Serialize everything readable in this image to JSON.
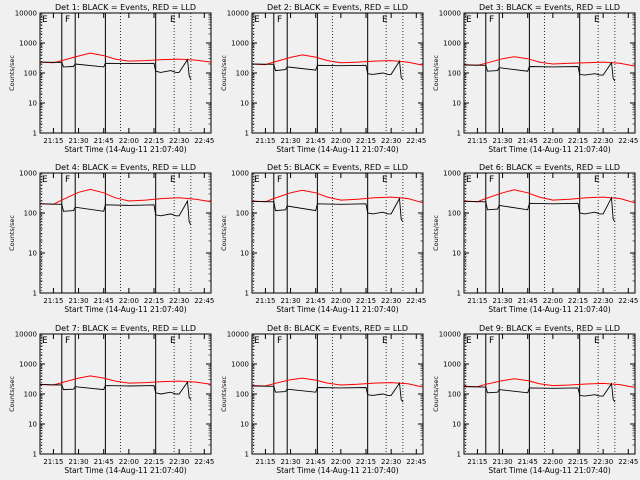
{
  "chart_data": [
    {
      "type": "line",
      "title": "Det 1: BLACK = Events, RED = LLD",
      "ylabel": "Counts/sec",
      "xlabel": "Start Time (14-Aug-11 21:07:40)",
      "y_scale": "log",
      "ylim": [
        1,
        10000
      ],
      "xlim": [
        "21:07",
        "22:49"
      ],
      "x_ticks": [
        "21:15",
        "21:30",
        "21:45",
        "22:00",
        "22:15",
        "22:30",
        "22:45"
      ],
      "y_ticks": [
        "1",
        "10",
        "100",
        "1000",
        "10000"
      ],
      "markers": [
        "E",
        "F",
        "E"
      ],
      "series": [
        {
          "color": "#ff0000",
          "x": [
            "21:07",
            "21:15",
            "21:20",
            "21:30",
            "21:37",
            "21:45",
            "21:52",
            "22:00",
            "22:10",
            "22:20",
            "22:30",
            "22:40",
            "22:49"
          ],
          "values": [
            230,
            220,
            260,
            370,
            460,
            380,
            290,
            250,
            260,
            280,
            290,
            270,
            230
          ]
        },
        {
          "color": "#000000",
          "x": [
            "21:07",
            "21:20",
            "21:21",
            "21:27",
            "21:28",
            "21:45",
            "21:46",
            "22:00",
            "22:15",
            "22:16",
            "22:19",
            "22:25",
            "22:28",
            "22:30",
            "22:35",
            "22:36",
            "22:37"
          ],
          "values": [
            230,
            225,
            160,
            165,
            200,
            160,
            210,
            205,
            210,
            115,
            105,
            120,
            105,
            105,
            280,
            80,
            60
          ]
        }
      ]
    },
    {
      "type": "line",
      "title": "Det 2: BLACK = Events, RED = LLD",
      "ylabel": "Counts/sec",
      "xlabel": "Start Time (14-Aug-11 21:07:40)",
      "y_scale": "log",
      "ylim": [
        1,
        10000
      ],
      "xlim": [
        "21:07",
        "22:49"
      ],
      "x_ticks": [
        "21:15",
        "21:30",
        "21:45",
        "22:00",
        "22:15",
        "22:30",
        "22:45"
      ],
      "y_ticks": [
        "1",
        "10",
        "100",
        "1000",
        "10000"
      ],
      "markers": [
        "E",
        "F",
        "E"
      ],
      "series": [
        {
          "color": "#ff0000",
          "x": [
            "21:07",
            "21:15",
            "21:20",
            "21:30",
            "21:37",
            "21:45",
            "21:52",
            "22:00",
            "22:10",
            "22:20",
            "22:30",
            "22:40",
            "22:49"
          ],
          "values": [
            200,
            190,
            230,
            330,
            400,
            340,
            260,
            220,
            230,
            250,
            260,
            230,
            180
          ]
        },
        {
          "color": "#000000",
          "x": [
            "21:07",
            "21:20",
            "21:21",
            "21:27",
            "21:28",
            "21:45",
            "21:46",
            "22:00",
            "22:15",
            "22:16",
            "22:19",
            "22:25",
            "22:28",
            "22:30",
            "22:35",
            "22:36",
            "22:37"
          ],
          "values": [
            200,
            195,
            120,
            130,
            160,
            125,
            180,
            175,
            180,
            95,
            90,
            100,
            90,
            90,
            250,
            70,
            60
          ]
        }
      ]
    },
    {
      "type": "line",
      "title": "Det 3: BLACK = Events, RED = LLD",
      "ylabel": "Counts/sec",
      "xlabel": "Start Time (14-Aug-11 21:07:40)",
      "y_scale": "log",
      "ylim": [
        1,
        10000
      ],
      "xlim": [
        "21:07",
        "22:49"
      ],
      "x_ticks": [
        "21:15",
        "21:30",
        "21:45",
        "22:00",
        "22:15",
        "22:30",
        "22:45"
      ],
      "y_ticks": [
        "1",
        "10",
        "100",
        "1000",
        "10000"
      ],
      "markers": [
        "E",
        "F",
        "E"
      ],
      "series": [
        {
          "color": "#ff0000",
          "x": [
            "21:07",
            "21:15",
            "21:20",
            "21:30",
            "21:37",
            "21:45",
            "21:52",
            "22:00",
            "22:10",
            "22:20",
            "22:30",
            "22:40",
            "22:49"
          ],
          "values": [
            190,
            180,
            210,
            300,
            350,
            300,
            230,
            200,
            210,
            220,
            230,
            210,
            170
          ]
        },
        {
          "color": "#000000",
          "x": [
            "21:07",
            "21:20",
            "21:21",
            "21:27",
            "21:28",
            "21:45",
            "21:46",
            "22:00",
            "22:15",
            "22:16",
            "22:19",
            "22:25",
            "22:28",
            "22:30",
            "22:35",
            "22:36",
            "22:37"
          ],
          "values": [
            185,
            180,
            115,
            120,
            150,
            115,
            165,
            160,
            165,
            90,
            85,
            95,
            85,
            85,
            220,
            65,
            55
          ]
        }
      ]
    },
    {
      "type": "line",
      "title": "Det 4: BLACK = Events, RED = LLD",
      "ylabel": "Counts/sec",
      "xlabel": "Start Time (14-Aug-11 21:07:40)",
      "y_scale": "log",
      "ylim": [
        1,
        1000
      ],
      "xlim": [
        "21:07",
        "22:49"
      ],
      "x_ticks": [
        "21:15",
        "21:30",
        "21:45",
        "22:00",
        "22:15",
        "22:30",
        "22:45"
      ],
      "y_ticks": [
        "1",
        "10",
        "100",
        "1000"
      ],
      "markers": [
        "E",
        "F",
        "E"
      ],
      "series": [
        {
          "color": "#ff0000",
          "x": [
            "21:07",
            "21:15",
            "21:20",
            "21:30",
            "21:37",
            "21:45",
            "21:52",
            "22:00",
            "22:10",
            "22:20",
            "22:30",
            "22:40",
            "22:49"
          ],
          "values": [
            170,
            165,
            210,
            330,
            390,
            320,
            240,
            200,
            210,
            230,
            240,
            220,
            190
          ]
        },
        {
          "color": "#000000",
          "x": [
            "21:07",
            "21:20",
            "21:21",
            "21:27",
            "21:28",
            "21:45",
            "21:46",
            "22:00",
            "22:15",
            "22:16",
            "22:19",
            "22:25",
            "22:28",
            "22:30",
            "22:35",
            "22:36",
            "22:37"
          ],
          "values": [
            170,
            165,
            110,
            115,
            140,
            110,
            160,
            155,
            160,
            90,
            85,
            95,
            85,
            85,
            200,
            60,
            50
          ]
        }
      ]
    },
    {
      "type": "line",
      "title": "Det 5: BLACK = Events, RED = LLD",
      "ylabel": "Counts/sec",
      "xlabel": "Start Time (14-Aug-11 21:07:40)",
      "y_scale": "log",
      "ylim": [
        1,
        1000
      ],
      "xlim": [
        "21:07",
        "22:49"
      ],
      "x_ticks": [
        "21:15",
        "21:30",
        "21:45",
        "22:00",
        "22:15",
        "22:30",
        "22:45"
      ],
      "y_ticks": [
        "1",
        "10",
        "100",
        "1000"
      ],
      "markers": [
        "E",
        "F",
        "E"
      ],
      "series": [
        {
          "color": "#ff0000",
          "x": [
            "21:07",
            "21:15",
            "21:20",
            "21:30",
            "21:37",
            "21:45",
            "21:52",
            "22:00",
            "22:10",
            "22:20",
            "22:30",
            "22:40",
            "22:49"
          ],
          "values": [
            200,
            190,
            230,
            320,
            370,
            320,
            250,
            210,
            220,
            240,
            250,
            230,
            180
          ]
        },
        {
          "color": "#000000",
          "x": [
            "21:07",
            "21:20",
            "21:21",
            "21:27",
            "21:28",
            "21:45",
            "21:46",
            "22:00",
            "22:15",
            "22:16",
            "22:19",
            "22:25",
            "22:28",
            "22:30",
            "22:35",
            "22:36",
            "22:37"
          ],
          "values": [
            195,
            190,
            115,
            120,
            150,
            115,
            170,
            165,
            170,
            100,
            95,
            105,
            95,
            95,
            230,
            70,
            60
          ]
        }
      ]
    },
    {
      "type": "line",
      "title": "Det 6: BLACK = Events, RED = LLD",
      "ylabel": "Counts/sec",
      "xlabel": "Start Time (14-Aug-11 21:07:40)",
      "y_scale": "log",
      "ylim": [
        1,
        1000
      ],
      "xlim": [
        "21:07",
        "22:49"
      ],
      "x_ticks": [
        "21:15",
        "21:30",
        "21:45",
        "22:00",
        "22:15",
        "22:30",
        "22:45"
      ],
      "y_ticks": [
        "1",
        "10",
        "100",
        "1000"
      ],
      "markers": [
        "E",
        "F",
        "E"
      ],
      "series": [
        {
          "color": "#ff0000",
          "x": [
            "21:07",
            "21:15",
            "21:20",
            "21:30",
            "21:37",
            "21:45",
            "21:52",
            "22:00",
            "22:10",
            "22:20",
            "22:30",
            "22:40",
            "22:49"
          ],
          "values": [
            200,
            190,
            230,
            320,
            380,
            320,
            250,
            210,
            220,
            240,
            250,
            230,
            180
          ]
        },
        {
          "color": "#000000",
          "x": [
            "21:07",
            "21:20",
            "21:21",
            "21:27",
            "21:28",
            "21:45",
            "21:46",
            "22:00",
            "22:15",
            "22:16",
            "22:19",
            "22:25",
            "22:28",
            "22:30",
            "22:35",
            "22:36",
            "22:37"
          ],
          "values": [
            195,
            190,
            120,
            125,
            155,
            120,
            175,
            170,
            175,
            100,
            95,
            105,
            95,
            95,
            240,
            70,
            60
          ]
        }
      ]
    },
    {
      "type": "line",
      "title": "Det 7: BLACK = Events, RED = LLD",
      "ylabel": "Counts/sec",
      "xlabel": "Start Time (14-Aug-11 21:07:40)",
      "y_scale": "log",
      "ylim": [
        1,
        10000
      ],
      "xlim": [
        "21:07",
        "22:49"
      ],
      "x_ticks": [
        "21:15",
        "21:30",
        "21:45",
        "22:00",
        "22:15",
        "22:30",
        "22:45"
      ],
      "y_ticks": [
        "1",
        "10",
        "100",
        "1000",
        "10000"
      ],
      "markers": [
        "E",
        "F",
        "E"
      ],
      "series": [
        {
          "color": "#ff0000",
          "x": [
            "21:07",
            "21:15",
            "21:20",
            "21:30",
            "21:37",
            "21:45",
            "21:52",
            "22:00",
            "22:10",
            "22:20",
            "22:30",
            "22:40",
            "22:49"
          ],
          "values": [
            210,
            200,
            240,
            340,
            400,
            340,
            270,
            230,
            240,
            260,
            270,
            250,
            210
          ]
        },
        {
          "color": "#000000",
          "x": [
            "21:07",
            "21:20",
            "21:21",
            "21:27",
            "21:28",
            "21:45",
            "21:46",
            "22:00",
            "22:15",
            "22:16",
            "22:19",
            "22:25",
            "22:28",
            "22:30",
            "22:35",
            "22:36",
            "22:37"
          ],
          "values": [
            205,
            200,
            140,
            145,
            175,
            140,
            190,
            185,
            190,
            110,
            100,
            115,
            100,
            100,
            250,
            75,
            65
          ]
        }
      ]
    },
    {
      "type": "line",
      "title": "Det 8: BLACK = Events, RED = LLD",
      "ylabel": "Counts/sec",
      "xlabel": "Start Time (14-Aug-11 21:07:40)",
      "y_scale": "log",
      "ylim": [
        1,
        10000
      ],
      "xlim": [
        "21:07",
        "22:49"
      ],
      "x_ticks": [
        "21:15",
        "21:30",
        "21:45",
        "22:00",
        "22:15",
        "22:30",
        "22:45"
      ],
      "y_ticks": [
        "1",
        "10",
        "100",
        "1000",
        "10000"
      ],
      "markers": [
        "E",
        "F",
        "E"
      ],
      "series": [
        {
          "color": "#ff0000",
          "x": [
            "21:07",
            "21:15",
            "21:20",
            "21:30",
            "21:37",
            "21:45",
            "21:52",
            "22:00",
            "22:10",
            "22:20",
            "22:30",
            "22:40",
            "22:49"
          ],
          "values": [
            190,
            185,
            220,
            300,
            340,
            290,
            230,
            200,
            210,
            230,
            240,
            220,
            170
          ]
        },
        {
          "color": "#000000",
          "x": [
            "21:07",
            "21:20",
            "21:21",
            "21:27",
            "21:28",
            "21:45",
            "21:46",
            "22:00",
            "22:15",
            "22:16",
            "22:19",
            "22:25",
            "22:28",
            "22:30",
            "22:35",
            "22:36",
            "22:37"
          ],
          "values": [
            185,
            180,
            115,
            120,
            145,
            115,
            165,
            160,
            165,
            95,
            90,
            100,
            90,
            90,
            230,
            65,
            55
          ]
        }
      ]
    },
    {
      "type": "line",
      "title": "Det 9: BLACK = Events, RED = LLD",
      "ylabel": "Counts/sec",
      "xlabel": "Start Time (14-Aug-11 21:07:40)",
      "y_scale": "log",
      "ylim": [
        1,
        10000
      ],
      "xlim": [
        "21:07",
        "22:49"
      ],
      "x_ticks": [
        "21:15",
        "21:30",
        "21:45",
        "22:00",
        "22:15",
        "22:30",
        "22:45"
      ],
      "y_ticks": [
        "1",
        "10",
        "100",
        "1000",
        "10000"
      ],
      "markers": [
        "E",
        "F",
        "E"
      ],
      "series": [
        {
          "color": "#ff0000",
          "x": [
            "21:07",
            "21:15",
            "21:20",
            "21:30",
            "21:37",
            "21:45",
            "21:52",
            "22:00",
            "22:10",
            "22:20",
            "22:30",
            "22:40",
            "22:49"
          ],
          "values": [
            180,
            175,
            210,
            280,
            320,
            280,
            220,
            190,
            200,
            215,
            225,
            205,
            165
          ]
        },
        {
          "color": "#000000",
          "x": [
            "21:07",
            "21:20",
            "21:21",
            "21:27",
            "21:28",
            "21:45",
            "21:46",
            "22:00",
            "22:15",
            "22:16",
            "22:19",
            "22:25",
            "22:28",
            "22:30",
            "22:35",
            "22:36",
            "22:37"
          ],
          "values": [
            175,
            170,
            110,
            115,
            140,
            110,
            160,
            155,
            160,
            90,
            85,
            95,
            85,
            85,
            220,
            65,
            55
          ]
        }
      ]
    }
  ]
}
